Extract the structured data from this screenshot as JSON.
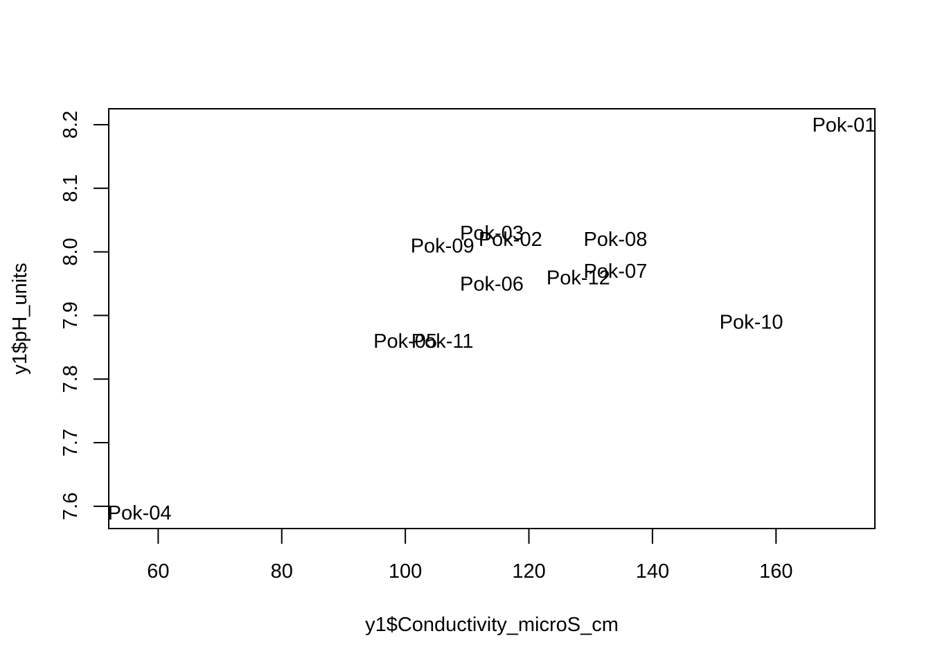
{
  "chart_data": {
    "type": "scatter",
    "title": "",
    "xlabel": "y1$Conductivity_microS_cm",
    "ylabel": "y1$pH_units",
    "xlim": [
      52,
      176
    ],
    "ylim": [
      7.565,
      8.225
    ],
    "xticks": [
      60,
      80,
      100,
      120,
      140,
      160
    ],
    "yticks": [
      7.6,
      7.7,
      7.8,
      7.9,
      8.0,
      8.1,
      8.2
    ],
    "grid": false,
    "points": [
      {
        "label": "Pok-01",
        "x": 171,
        "y": 8.2
      },
      {
        "label": "Pok-02",
        "x": 117,
        "y": 8.02
      },
      {
        "label": "Pok-03",
        "x": 114,
        "y": 8.03
      },
      {
        "label": "Pok-04",
        "x": 57,
        "y": 7.59
      },
      {
        "label": "Pok-05",
        "x": 100,
        "y": 7.86
      },
      {
        "label": "Pok-06",
        "x": 114,
        "y": 7.95
      },
      {
        "label": "Pok-07",
        "x": 134,
        "y": 7.97
      },
      {
        "label": "Pok-08",
        "x": 134,
        "y": 8.02
      },
      {
        "label": "Pok-09",
        "x": 106,
        "y": 8.01
      },
      {
        "label": "Pok-10",
        "x": 156,
        "y": 7.89
      },
      {
        "label": "Pok-11",
        "x": 106,
        "y": 7.86
      },
      {
        "label": "Pok-12",
        "x": 128,
        "y": 7.96
      }
    ]
  }
}
